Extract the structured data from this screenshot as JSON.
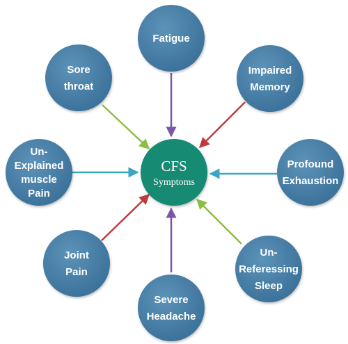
{
  "center": {
    "line1": "CFS",
    "line2": "Symptoms",
    "color": "#128a73"
  },
  "node_color": "#3f7aa2",
  "nodes": [
    {
      "id": "fatigue",
      "lines": [
        "Fatigue"
      ],
      "arrow_color": "#7b56a8"
    },
    {
      "id": "impaired-memory",
      "lines": [
        "Impaired",
        "Memory"
      ],
      "arrow_color": "#c0393b"
    },
    {
      "id": "profound-exhaustion",
      "lines": [
        "Profound",
        "Exhaustion"
      ],
      "arrow_color": "#3aa6c4"
    },
    {
      "id": "unrefreshing-sleep",
      "lines": [
        "Un-",
        "Referessing",
        "Sleep"
      ],
      "arrow_color": "#8dbd45"
    },
    {
      "id": "severe-headache",
      "lines": [
        "Severe",
        "Headache"
      ],
      "arrow_color": "#7b56a8"
    },
    {
      "id": "joint-pain",
      "lines": [
        "Joint",
        "Pain"
      ],
      "arrow_color": "#c0393b"
    },
    {
      "id": "unexplained-muscle-pain",
      "lines": [
        "Un-",
        "Explained",
        "muscle",
        "Pain"
      ],
      "arrow_color": "#3aa6c4"
    },
    {
      "id": "sore-throat",
      "lines": [
        "Sore",
        "throat"
      ],
      "arrow_color": "#8dbd45"
    }
  ]
}
